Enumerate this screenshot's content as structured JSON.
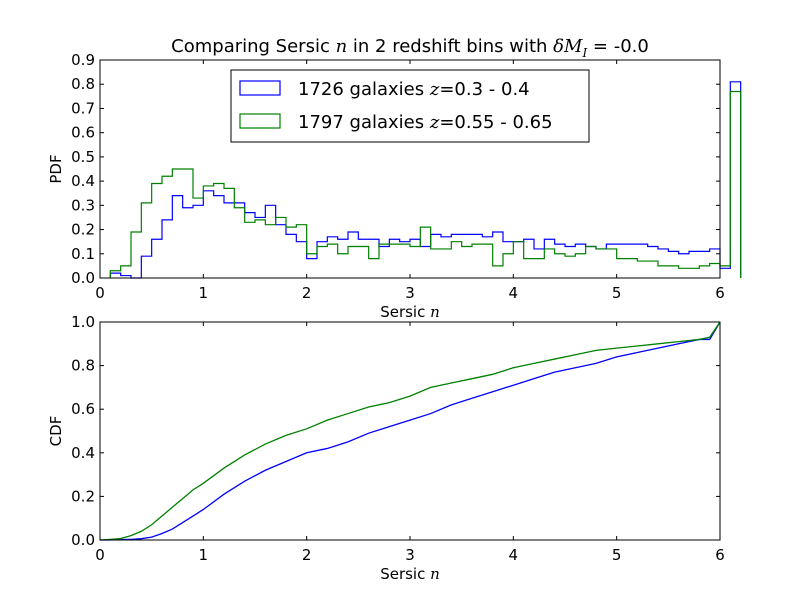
{
  "title": {
    "prefix": "Comparing Sersic ",
    "var": "n",
    "middle": " in 2 redshift bins with ",
    "delta": "δM",
    "sub": "I",
    "suffix": " = -0.0"
  },
  "chart_data": [
    {
      "type": "histogram-step",
      "xlabel_text": "Sersic ",
      "xlabel_var": "n",
      "ylabel": "PDF",
      "xlim": [
        0,
        6
      ],
      "ylim": [
        0,
        0.9
      ],
      "xticks": [
        "0",
        "1",
        "2",
        "3",
        "4",
        "5",
        "6"
      ],
      "yticks": [
        "0.0",
        "0.1",
        "0.2",
        "0.3",
        "0.4",
        "0.5",
        "0.6",
        "0.7",
        "0.8",
        "0.9"
      ],
      "legend_position": "top-center",
      "bin_edges_start": 0.1,
      "bin_width": 0.1,
      "series": [
        {
          "name": "1726 galaxies z=0.3 - 0.4",
          "legend_count": "1726 galaxies ",
          "legend_var": "z",
          "legend_range": "=0.3 - 0.4",
          "color": "#0000ff",
          "values": [
            0.02,
            0.01,
            0.0,
            0.09,
            0.16,
            0.24,
            0.34,
            0.29,
            0.3,
            0.36,
            0.34,
            0.31,
            0.31,
            0.27,
            0.25,
            0.3,
            0.22,
            0.18,
            0.15,
            0.08,
            0.15,
            0.17,
            0.16,
            0.19,
            0.16,
            0.16,
            0.13,
            0.16,
            0.15,
            0.16,
            0.13,
            0.18,
            0.17,
            0.18,
            0.18,
            0.18,
            0.17,
            0.19,
            0.15,
            0.15,
            0.16,
            0.12,
            0.16,
            0.14,
            0.13,
            0.14,
            0.13,
            0.12,
            0.14,
            0.14,
            0.14,
            0.14,
            0.13,
            0.12,
            0.11,
            0.1,
            0.11,
            0.11,
            0.12,
            0.04,
            0.81
          ]
        },
        {
          "name": "1797 galaxies z=0.55 - 0.65",
          "legend_count": "1797 galaxies ",
          "legend_var": "z",
          "legend_range": "=0.55 - 0.65",
          "color": "#008000",
          "values": [
            0.03,
            0.05,
            0.19,
            0.31,
            0.39,
            0.42,
            0.45,
            0.45,
            0.33,
            0.38,
            0.39,
            0.37,
            0.29,
            0.23,
            0.24,
            0.22,
            0.25,
            0.21,
            0.22,
            0.1,
            0.13,
            0.14,
            0.1,
            0.13,
            0.13,
            0.08,
            0.14,
            0.14,
            0.14,
            0.13,
            0.21,
            0.12,
            0.12,
            0.15,
            0.13,
            0.14,
            0.14,
            0.05,
            0.1,
            0.15,
            0.08,
            0.08,
            0.12,
            0.1,
            0.09,
            0.1,
            0.13,
            0.12,
            0.12,
            0.08,
            0.08,
            0.07,
            0.07,
            0.05,
            0.05,
            0.04,
            0.04,
            0.05,
            0.06,
            0.05,
            0.77
          ]
        }
      ]
    },
    {
      "type": "line",
      "xlabel_text": "Sersic ",
      "xlabel_var": "n",
      "ylabel": "CDF",
      "xlim": [
        0,
        6
      ],
      "ylim": [
        0,
        1.0
      ],
      "xticks": [
        "0",
        "1",
        "2",
        "3",
        "4",
        "5",
        "6"
      ],
      "yticks": [
        "0.0",
        "0.2",
        "0.4",
        "0.6",
        "0.8",
        "1.0"
      ],
      "x": [
        0.0,
        0.1,
        0.2,
        0.3,
        0.4,
        0.5,
        0.6,
        0.7,
        0.8,
        0.9,
        1.0,
        1.2,
        1.4,
        1.6,
        1.8,
        2.0,
        2.2,
        2.4,
        2.6,
        2.8,
        3.0,
        3.2,
        3.4,
        3.6,
        3.8,
        4.0,
        4.2,
        4.4,
        4.6,
        4.8,
        5.0,
        5.2,
        5.4,
        5.6,
        5.8,
        5.9,
        6.0
      ],
      "series": [
        {
          "name": "1726 galaxies z=0.3 - 0.4",
          "color": "#0000ff",
          "values": [
            0.0,
            0.0,
            0.002,
            0.003,
            0.006,
            0.013,
            0.03,
            0.05,
            0.08,
            0.11,
            0.14,
            0.21,
            0.27,
            0.32,
            0.36,
            0.4,
            0.42,
            0.45,
            0.49,
            0.52,
            0.55,
            0.58,
            0.62,
            0.65,
            0.68,
            0.71,
            0.74,
            0.77,
            0.79,
            0.81,
            0.84,
            0.86,
            0.88,
            0.9,
            0.92,
            0.92,
            1.0
          ]
        },
        {
          "name": "1797 galaxies z=0.55 - 0.65",
          "color": "#008000",
          "values": [
            0.0,
            0.003,
            0.007,
            0.02,
            0.04,
            0.07,
            0.11,
            0.15,
            0.19,
            0.23,
            0.26,
            0.33,
            0.39,
            0.44,
            0.48,
            0.51,
            0.55,
            0.58,
            0.61,
            0.63,
            0.66,
            0.7,
            0.72,
            0.74,
            0.76,
            0.79,
            0.81,
            0.83,
            0.85,
            0.87,
            0.88,
            0.89,
            0.9,
            0.91,
            0.92,
            0.93,
            1.0
          ]
        }
      ]
    }
  ]
}
